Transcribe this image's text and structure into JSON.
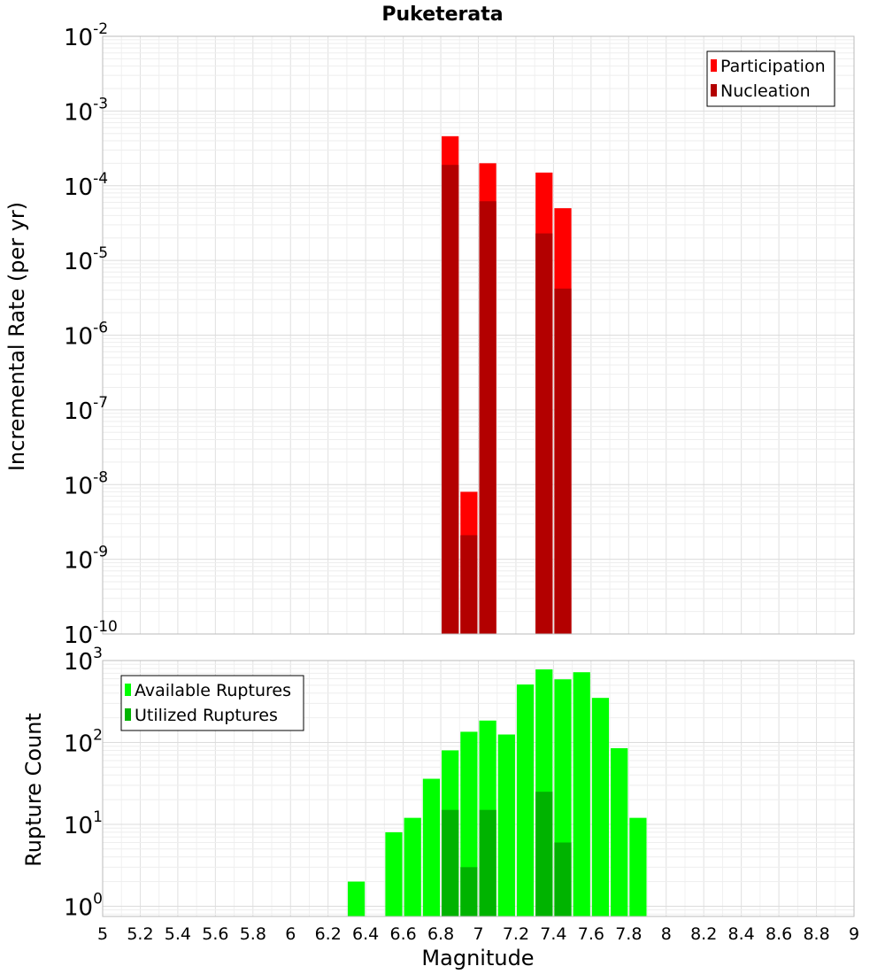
{
  "chart_data": [
    {
      "type": "bar",
      "title": "Puketerata",
      "xlabel": "",
      "ylabel": "Incremental Rate (per yr)",
      "yscale": "log",
      "xlim": [
        5,
        9
      ],
      "ylim": [
        1e-10,
        0.01
      ],
      "y_tick_labels": [
        {
          "base": "10",
          "exp": "-10",
          "value": 1e-10
        },
        {
          "base": "10",
          "exp": "-9",
          "value": 1e-09
        },
        {
          "base": "10",
          "exp": "-8",
          "value": 1e-08
        },
        {
          "base": "10",
          "exp": "-7",
          "value": 1e-07
        },
        {
          "base": "10",
          "exp": "-6",
          "value": 1e-06
        },
        {
          "base": "10",
          "exp": "-5",
          "value": 1e-05
        },
        {
          "base": "10",
          "exp": "-4",
          "value": 0.0001
        },
        {
          "base": "10",
          "exp": "-3",
          "value": 0.001
        },
        {
          "base": "10",
          "exp": "-2",
          "value": 0.01
        }
      ],
      "grid": true,
      "legend_position": "top-right",
      "bar_width": 0.1,
      "series": [
        {
          "name": "Participation",
          "color": "#ff0000",
          "points": [
            {
              "x": 6.85,
              "y": 0.00046
            },
            {
              "x": 6.95,
              "y": 8e-09
            },
            {
              "x": 7.05,
              "y": 0.0002
            },
            {
              "x": 7.35,
              "y": 0.00015
            },
            {
              "x": 7.45,
              "y": 5e-05
            }
          ]
        },
        {
          "name": "Nucleation",
          "color": "#b30000",
          "points": [
            {
              "x": 6.85,
              "y": 0.00019
            },
            {
              "x": 6.95,
              "y": 2.1e-09
            },
            {
              "x": 7.05,
              "y": 6.2e-05
            },
            {
              "x": 7.35,
              "y": 2.3e-05
            },
            {
              "x": 7.45,
              "y": 4.2e-06
            }
          ]
        }
      ]
    },
    {
      "type": "bar",
      "title": "",
      "xlabel": "Magnitude",
      "ylabel": "Rupture Count",
      "yscale": "log",
      "xlim": [
        5,
        9
      ],
      "ylim": [
        0.75,
        1000
      ],
      "x_ticks": [
        "5",
        "5.2",
        "5.4",
        "5.6",
        "5.8",
        "6",
        "6.2",
        "6.4",
        "6.6",
        "6.8",
        "7",
        "7.2",
        "7.4",
        "7.6",
        "7.8",
        "8",
        "8.2",
        "8.4",
        "8.6",
        "8.8",
        "9"
      ],
      "y_tick_labels": [
        {
          "base": "10",
          "exp": "0",
          "value": 1
        },
        {
          "base": "10",
          "exp": "1",
          "value": 10
        },
        {
          "base": "10",
          "exp": "2",
          "value": 100
        },
        {
          "base": "10",
          "exp": "3",
          "value": 1000
        }
      ],
      "grid": true,
      "legend_position": "top-left",
      "bar_width": 0.1,
      "series": [
        {
          "name": "Available Ruptures",
          "color": "#00ff00",
          "points": [
            {
              "x": 6.35,
              "y": 2
            },
            {
              "x": 6.55,
              "y": 8
            },
            {
              "x": 6.65,
              "y": 12
            },
            {
              "x": 6.75,
              "y": 36
            },
            {
              "x": 6.85,
              "y": 80
            },
            {
              "x": 6.95,
              "y": 135
            },
            {
              "x": 7.05,
              "y": 185
            },
            {
              "x": 7.15,
              "y": 125
            },
            {
              "x": 7.25,
              "y": 510
            },
            {
              "x": 7.35,
              "y": 780
            },
            {
              "x": 7.45,
              "y": 590
            },
            {
              "x": 7.55,
              "y": 720
            },
            {
              "x": 7.65,
              "y": 350
            },
            {
              "x": 7.75,
              "y": 85
            },
            {
              "x": 7.85,
              "y": 12
            }
          ]
        },
        {
          "name": "Utilized Ruptures",
          "color": "#00b300",
          "points": [
            {
              "x": 6.85,
              "y": 15
            },
            {
              "x": 6.95,
              "y": 3
            },
            {
              "x": 7.05,
              "y": 15
            },
            {
              "x": 7.35,
              "y": 25
            },
            {
              "x": 7.45,
              "y": 6
            }
          ]
        }
      ]
    }
  ]
}
